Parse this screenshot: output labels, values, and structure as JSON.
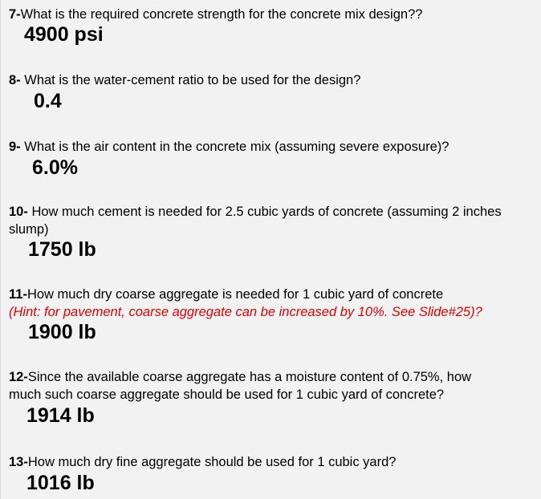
{
  "questions": [
    {
      "num": "7-",
      "text": "What is the required concrete strength for the concrete mix design??",
      "answer": "4900 psi"
    },
    {
      "num": "8-",
      "text": " What is the water-cement ratio to be used for the design?",
      "answer": "0.4"
    },
    {
      "num": "9-",
      "text": " What is the air content in the concrete mix (assuming severe exposure)?",
      "answer": "6.0%"
    },
    {
      "num": "10-",
      "text": " How much cement is needed for 2.5 cubic yards of concrete (assuming 2 inches",
      "text2": "slump)",
      "answer": "1750 lb"
    },
    {
      "num": "11-",
      "text": "How much dry coarse aggregate is needed for 1 cubic yard of concrete",
      "hint": "(Hint: for pavement, coarse aggregate can be increased by 10%.  See Slide#25)?",
      "answer": "1900 lb"
    },
    {
      "num": "12-",
      "text": "Since the available coarse aggregate has a moisture content of 0.75%, how",
      "text2": "much such coarse aggregate should be used for 1 cubic yard of concrete?",
      "answer": "1914 lb"
    },
    {
      "num": "13-",
      "text": "How much dry fine aggregate should be used for 1 cubic yard?",
      "answer": "1016 lb"
    }
  ],
  "colors": {
    "background": "#f2f2f2",
    "hint": "#e00000"
  }
}
